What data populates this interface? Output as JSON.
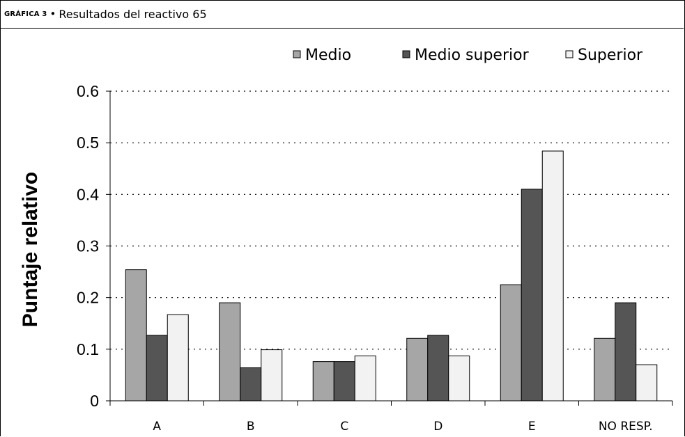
{
  "header": {
    "prefix": "GRÁFICA 3",
    "bullet": "•",
    "title": "Resultados del reactivo 65"
  },
  "chart_data": {
    "type": "bar",
    "title": "Resultados del reactivo 65",
    "xlabel": "",
    "ylabel": "Puntaje relativo",
    "ylim": [
      0,
      0.6
    ],
    "yticks": [
      "0",
      "0.1",
      "0.2",
      "0.3",
      "0.4",
      "0.5",
      "0.6"
    ],
    "grid": true,
    "legend_position": "top-right",
    "categories": [
      "A",
      "B",
      "C",
      "D",
      "E",
      "NO RESP."
    ],
    "series": [
      {
        "name": "Medio",
        "color": "#a6a6a6",
        "values": [
          0.254,
          0.19,
          0.076,
          0.121,
          0.225,
          0.121
        ]
      },
      {
        "name": "Medio superior",
        "color": "#555555",
        "values": [
          0.127,
          0.064,
          0.076,
          0.127,
          0.41,
          0.19
        ]
      },
      {
        "name": "Superior",
        "color": "#f2f2f2",
        "values": [
          0.167,
          0.099,
          0.087,
          0.087,
          0.484,
          0.07
        ]
      }
    ]
  }
}
